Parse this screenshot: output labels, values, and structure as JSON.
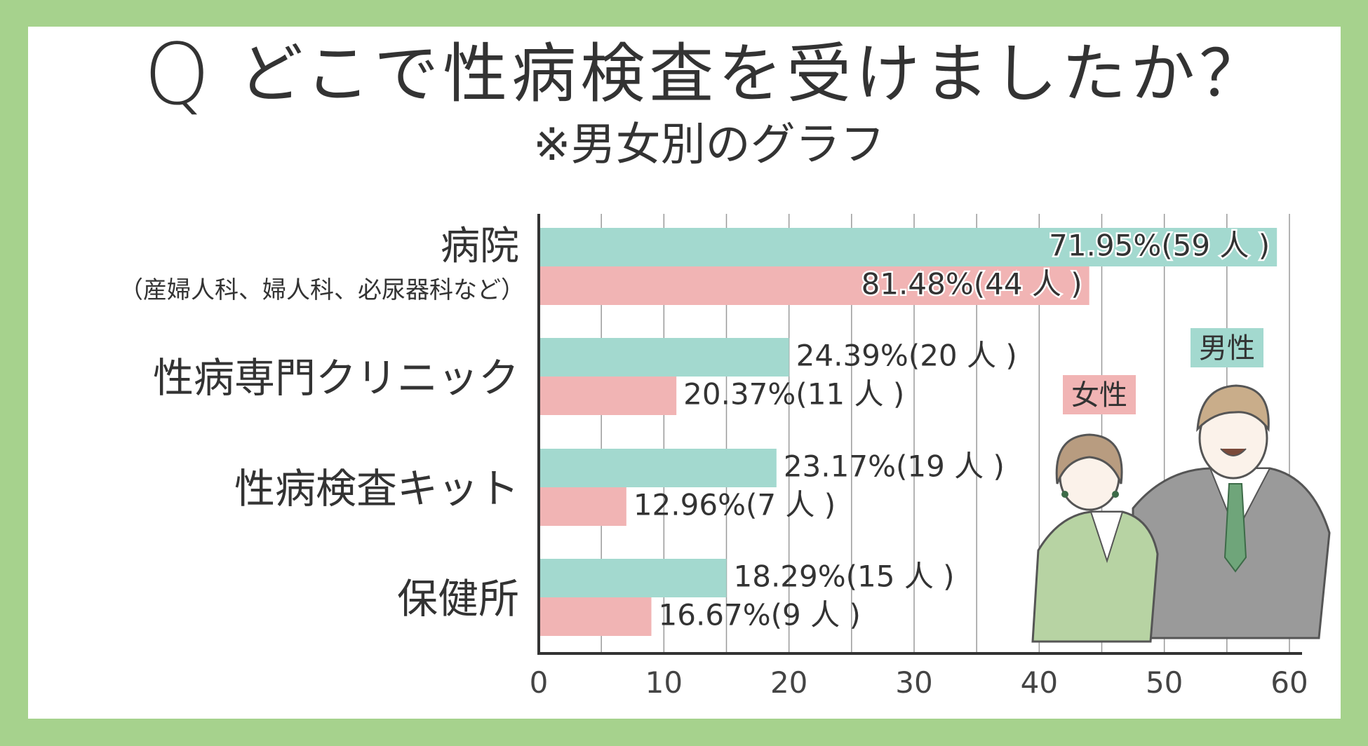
{
  "header": {
    "q_letter": "Q",
    "title": "どこで性病検査を受けましたか？",
    "subtitle": "※男女別のグラフ"
  },
  "legend": {
    "male": "男性",
    "female": "女性"
  },
  "colors": {
    "background": "#a6d28d",
    "male_bar": "#a3d9cf",
    "female_bar": "#f1b4b4"
  },
  "illustration": "couple-in-suits",
  "chart_data": {
    "type": "bar",
    "orientation": "horizontal",
    "categories": [
      {
        "label": "病院",
        "sublabel": "（産婦人科、婦人科、必尿器科など）"
      },
      {
        "label": "性病専門クリニック"
      },
      {
        "label": "性病検査キット"
      },
      {
        "label": "保健所"
      }
    ],
    "series": [
      {
        "name": "男性",
        "values": [
          59,
          20,
          19,
          15
        ],
        "labels": [
          "71.95%(59 人 )",
          "24.39%(20 人 )",
          "23.17%(19 人 )",
          "18.29%(15 人 )"
        ]
      },
      {
        "name": "女性",
        "values": [
          44,
          11,
          7,
          9
        ],
        "labels": [
          "81.48%(44 人 )",
          "20.37%(11 人 )",
          "12.96%(7 人 )",
          "16.67%(9 人 )"
        ]
      }
    ],
    "xlim": [
      0,
      60
    ],
    "xticks": [
      "0",
      "10",
      "20",
      "30",
      "40",
      "50",
      "60"
    ],
    "grid": true,
    "legend_position": "right"
  }
}
